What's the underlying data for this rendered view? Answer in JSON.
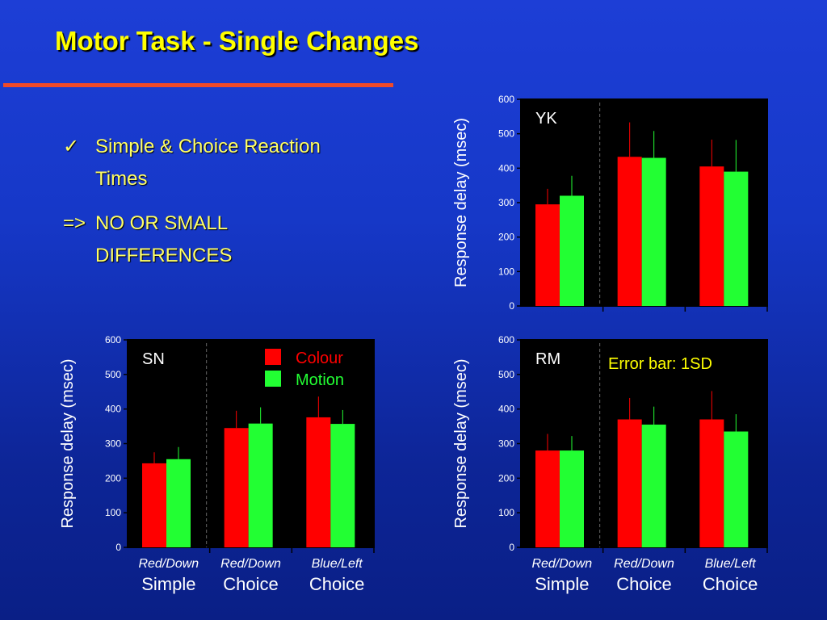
{
  "slide": {
    "title": "Motor Task - Single Changes",
    "bullets": [
      {
        "marker": "✓",
        "lines": [
          "Simple & Choice Reaction",
          "Times"
        ]
      },
      {
        "marker": "=>",
        "lines": [
          "NO OR SMALL",
          "DIFFERENCES"
        ]
      }
    ]
  },
  "colors": {
    "accent_title": "#ffff00",
    "colour_series": "#ff0000",
    "motion_series": "#22ff33",
    "plot_background": "#000000",
    "rule": "#f04a2a"
  },
  "chart_data": [
    {
      "type": "bar",
      "panel_label": "YK",
      "ylabel": "Response delay (msec)",
      "ylim": [
        0,
        600
      ],
      "yticks": [
        0,
        100,
        200,
        300,
        400,
        500,
        600
      ],
      "categories": [
        "Red/Down Simple",
        "Red/Down Choice",
        "Blue/Left Choice"
      ],
      "category_labels_shown": false,
      "series": [
        {
          "name": "Colour",
          "values": [
            295,
            433,
            405
          ],
          "errors": [
            45,
            100,
            78
          ]
        },
        {
          "name": "Motion",
          "values": [
            320,
            430,
            390
          ],
          "errors": [
            58,
            78,
            92
          ]
        }
      ]
    },
    {
      "type": "bar",
      "panel_label": "SN",
      "ylabel": "Response delay (msec)",
      "ylim": [
        0,
        600
      ],
      "yticks": [
        0,
        100,
        200,
        300,
        400,
        500,
        600
      ],
      "categories": [
        "Red/Down Simple",
        "Red/Down Choice",
        "Blue/Left Choice"
      ],
      "category_labels_shown": true,
      "category_top_labels": [
        "Red/Down",
        "Red/Down",
        "Blue/Left"
      ],
      "category_bottom_labels": [
        "Simple",
        "Choice",
        "Choice"
      ],
      "legend": {
        "placement": "top-right",
        "entries": [
          "Colour",
          "Motion"
        ]
      },
      "series": [
        {
          "name": "Colour",
          "values": [
            243,
            345,
            376
          ],
          "errors": [
            32,
            50,
            60
          ]
        },
        {
          "name": "Motion",
          "values": [
            255,
            358,
            357
          ],
          "errors": [
            35,
            47,
            40
          ]
        }
      ]
    },
    {
      "type": "bar",
      "panel_label": "RM",
      "annotation": "Error bar: 1SD",
      "ylabel": "Response delay (msec)",
      "ylim": [
        0,
        600
      ],
      "yticks": [
        0,
        100,
        200,
        300,
        400,
        500,
        600
      ],
      "categories": [
        "Red/Down Simple",
        "Red/Down Choice",
        "Blue/Left Choice"
      ],
      "category_labels_shown": true,
      "category_top_labels": [
        "Red/Down",
        "Red/Down",
        "Blue/Left"
      ],
      "category_bottom_labels": [
        "Simple",
        "Choice",
        "Choice"
      ],
      "series": [
        {
          "name": "Colour",
          "values": [
            280,
            370,
            370
          ],
          "errors": [
            48,
            62,
            82
          ]
        },
        {
          "name": "Motion",
          "values": [
            280,
            355,
            335
          ],
          "errors": [
            42,
            52,
            50
          ]
        }
      ]
    }
  ]
}
